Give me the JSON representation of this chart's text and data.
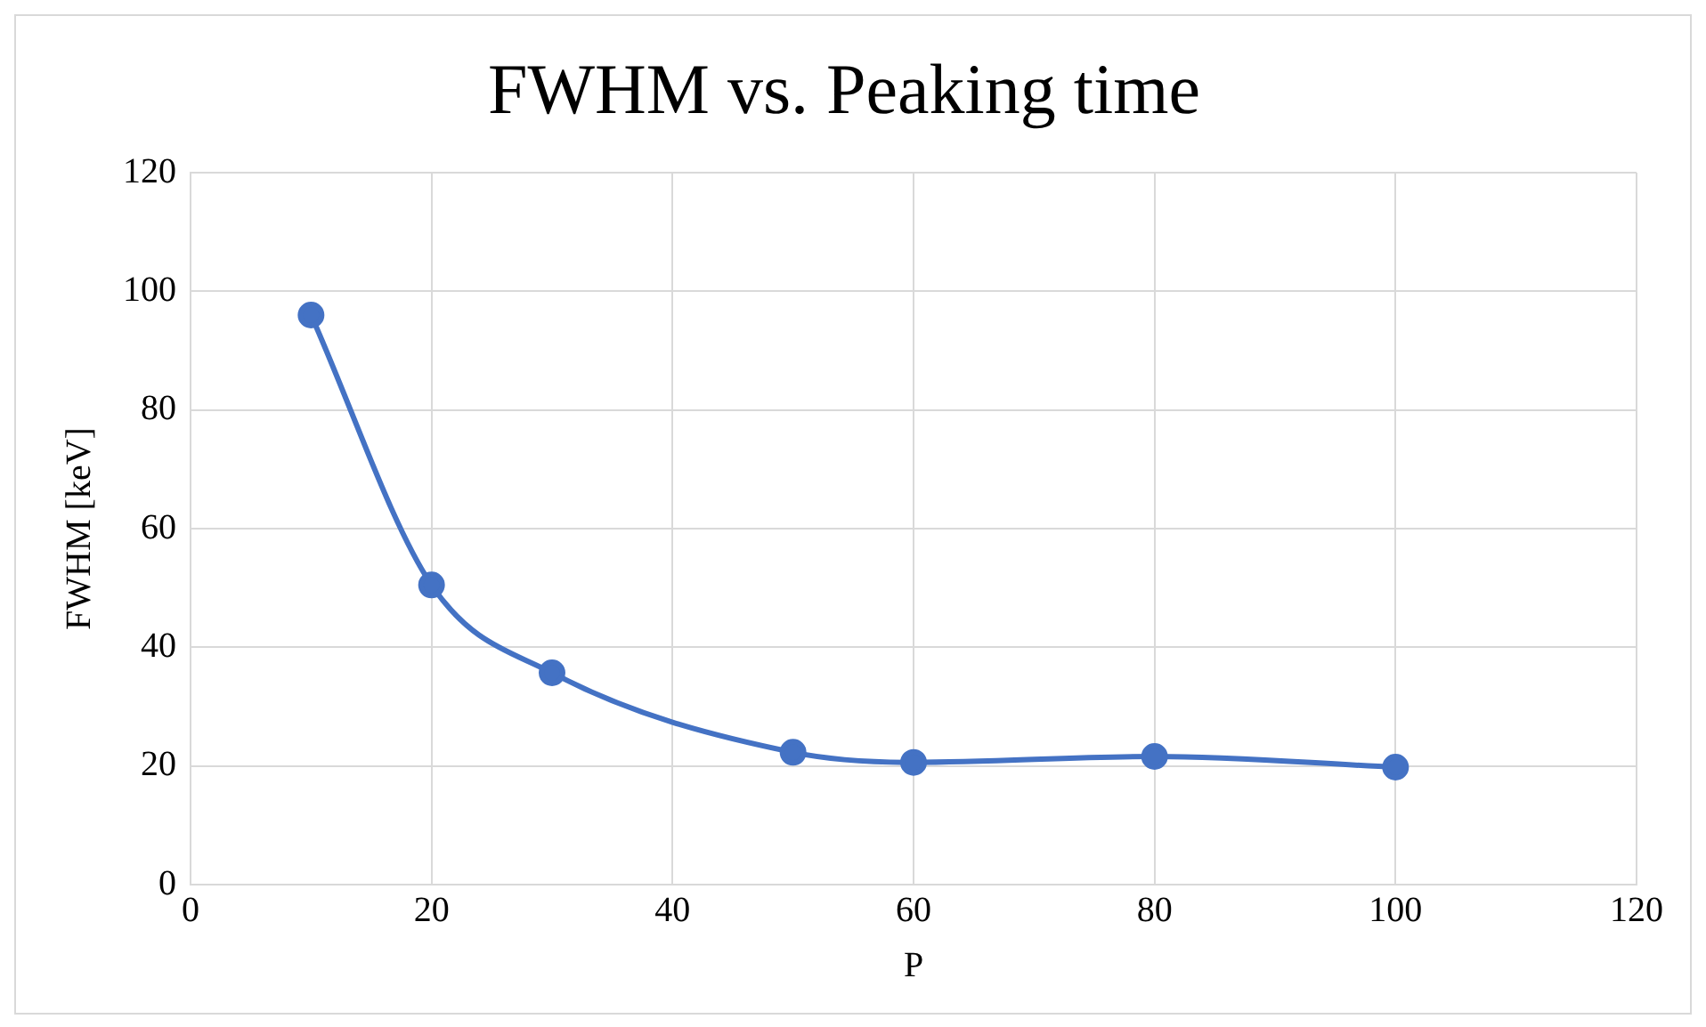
{
  "chart_data": {
    "type": "line",
    "title": "FWHM vs. Peaking time",
    "xlabel": "P",
    "ylabel": "FWHM [keV]",
    "x": [
      10,
      20,
      30,
      50,
      60,
      80,
      100
    ],
    "series": [
      {
        "color": "#4472c4",
        "values": [
          96,
          50.5,
          35.7,
          22.3,
          20.6,
          21.6,
          19.8
        ]
      }
    ],
    "xlim": [
      0,
      120
    ],
    "xticks": [
      0,
      20,
      40,
      60,
      80,
      100,
      120
    ],
    "ylim": [
      0,
      120
    ],
    "yticks": [
      0,
      20,
      40,
      60,
      80,
      100,
      120
    ],
    "grid": true,
    "marker": "circle",
    "line_style": "solid",
    "legend": false
  }
}
